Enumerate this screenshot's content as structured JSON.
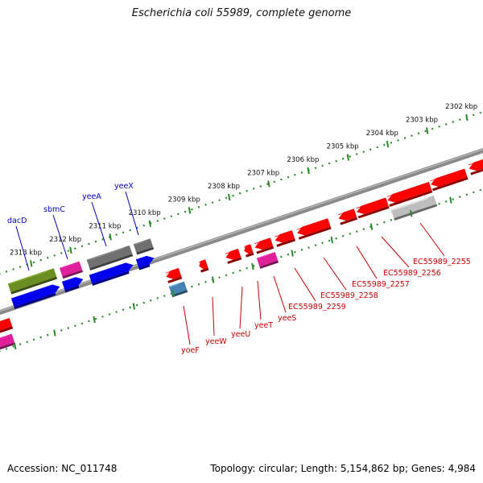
{
  "title": "Escherichia coli 55989, complete genome",
  "footer": {
    "accession_label": "Accession:",
    "accession": "NC_011748",
    "topology_label": "Topology:",
    "topology": "circular",
    "length_label": "Length:",
    "length": "5,154,862 bp",
    "genes_label": "Genes:",
    "genes": "4,984"
  },
  "ticks_upper": [
    "2313 kbp",
    "2312 kbp",
    "2311 kbp",
    "2310 kbp",
    "2309 kbp",
    "2308 kbp",
    "2307 kbp",
    "2306 kbp",
    "2305 kbp",
    "2304 kbp",
    "2303 kbp",
    "2302 kbp"
  ],
  "gene_labels_upper": [
    "dacD",
    "sbmC",
    "yeeA",
    "yeeX"
  ],
  "gene_labels_lower": [
    "yoeF",
    "yeeW",
    "yeeU",
    "yeeT",
    "yeeS",
    "EC55989_2259",
    "EC55989_2258",
    "EC55989_2257",
    "EC55989_2256",
    "EC55989_2255"
  ],
  "colors": {
    "backbone": "#8a8a8a",
    "tick_dots": "#2a8a2a",
    "label_upper": "#0000cc",
    "label_lower": "#cc0000",
    "gene_red": "#ff0000",
    "gene_blue": "#0000ee",
    "gene_green": "#6b8e23",
    "gene_magenta": "#e0209a",
    "gene_gray": "#707070",
    "gene_lightgray": "#bdbdbd",
    "gene_steel": "#4682b4"
  }
}
